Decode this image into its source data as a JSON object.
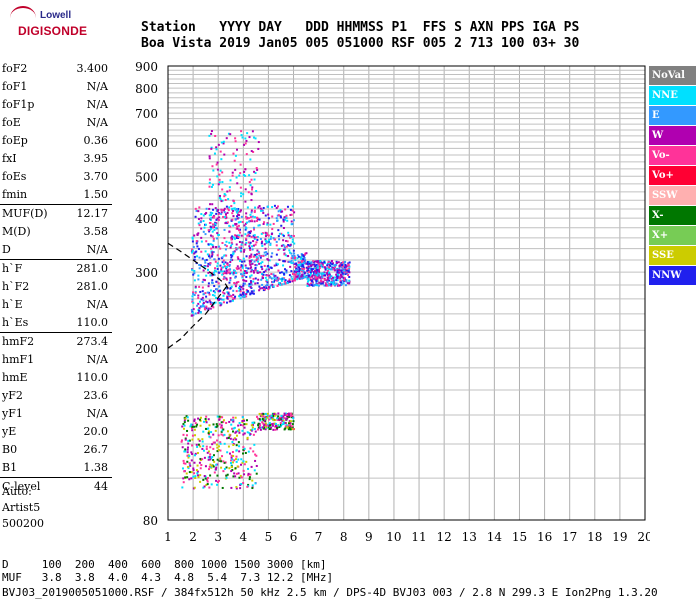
{
  "header": {
    "line1": "Station   YYYY DAY   DDD HHMMSS P1  FFS S AXN PPS IGA PS",
    "line2": "Boa Vista 2019 Jan05 005 051000 RSF 005 2 713 100 03+ 30"
  },
  "logo": {
    "top": "Lowell",
    "bottom": "DIGISONDE"
  },
  "params": [
    {
      "k": "foF2",
      "v": "3.400"
    },
    {
      "k": "foF1",
      "v": "N/A"
    },
    {
      "k": "foF1p",
      "v": "N/A"
    },
    {
      "k": "foE",
      "v": "N/A"
    },
    {
      "k": "foEp",
      "v": "0.36"
    },
    {
      "k": "fxI",
      "v": "3.95"
    },
    {
      "k": "foEs",
      "v": "3.70"
    },
    {
      "k": "fmin",
      "v": "1.50"
    },
    {
      "k": "MUF(D)",
      "v": "12.17"
    },
    {
      "k": "M(D)",
      "v": "3.58"
    },
    {
      "k": "D",
      "v": "N/A"
    },
    {
      "k": "h`F",
      "v": "281.0"
    },
    {
      "k": "h`F2",
      "v": "281.0"
    },
    {
      "k": "h`E",
      "v": "N/A"
    },
    {
      "k": "h`Es",
      "v": "110.0"
    },
    {
      "k": "hmF2",
      "v": "273.4"
    },
    {
      "k": "hmF1",
      "v": "N/A"
    },
    {
      "k": "hmE",
      "v": "110.0"
    },
    {
      "k": "yF2",
      "v": "23.6"
    },
    {
      "k": "yF1",
      "v": "N/A"
    },
    {
      "k": "yE",
      "v": "20.0"
    },
    {
      "k": "B0",
      "v": "26.7"
    },
    {
      "k": "B1",
      "v": "1.38"
    },
    {
      "k": "C-level",
      "v": "44"
    }
  ],
  "auto": [
    "Auto:",
    "Artist5",
    "500200"
  ],
  "distance_table": {
    "line1": "D     100  200  400  600  800 1000 1500 3000 [km]",
    "line2": "MUF   3.8  3.8  4.0  4.3  4.8  5.4  7.3 12.2 [MHz]"
  },
  "footer": "BVJ03_2019005051000.RSF / 384fx512h 50 kHz 2.5 km / DPS-4D BVJ03 003 / 2.8 N 299.3 E Ion2Png 1.3.20",
  "legend": [
    {
      "label": "NoVal",
      "color": "#808080"
    },
    {
      "label": "NNE",
      "color": "#00e0ff"
    },
    {
      "label": "E",
      "color": "#3399ff"
    },
    {
      "label": "W",
      "color": "#b000b0"
    },
    {
      "label": "Vo-",
      "color": "#ff3399"
    },
    {
      "label": "Vo+",
      "color": "#ff0033"
    },
    {
      "label": "SSW",
      "color": "#ffb0b0"
    },
    {
      "label": "X-",
      "color": "#007700"
    },
    {
      "label": "X+",
      "color": "#77cc55"
    },
    {
      "label": "SSE",
      "color": "#cccc00"
    },
    {
      "label": "NNW",
      "color": "#2020ee"
    }
  ],
  "chart_data": {
    "type": "scatter",
    "title": "",
    "xlabel": "",
    "ylabel": "",
    "xlim": [
      1,
      20
    ],
    "ylim": [
      80,
      900
    ],
    "x_ticks": [
      1,
      2,
      3,
      4,
      5,
      6,
      7,
      8,
      9,
      10,
      11,
      12,
      13,
      14,
      15,
      16,
      17,
      18,
      19,
      20
    ],
    "y_ticks": [
      80,
      200,
      300,
      400,
      500,
      600,
      700,
      800,
      900
    ],
    "y_scale": "log",
    "grid": true,
    "legend_position": "right",
    "clusters": [
      {
        "name": "F-trace",
        "x_range": [
          1.9,
          8.2
        ],
        "y_range": [
          220,
          440
        ],
        "colors": [
          "#b000b0",
          "#00e0ff",
          "#3399ff",
          "#ff3399",
          "#2020ee"
        ]
      },
      {
        "name": "F-spread-high",
        "x_range": [
          2.6,
          5.8
        ],
        "y_range": [
          300,
          640
        ],
        "colors": [
          "#b000b0",
          "#ff3399",
          "#00e0ff"
        ]
      },
      {
        "name": "Es-trace",
        "x_range": [
          1.5,
          6.0
        ],
        "y_range": [
          95,
          140
        ],
        "colors": [
          "#ff3399",
          "#b000b0",
          "#00e0ff",
          "#cccc00",
          "#007700"
        ]
      }
    ],
    "model_curve": [
      [
        1.0,
        350
      ],
      [
        1.5,
        335
      ],
      [
        2.0,
        320
      ],
      [
        2.5,
        305
      ],
      [
        3.0,
        290
      ],
      [
        3.3,
        281
      ],
      [
        3.4,
        275
      ]
    ],
    "model_curve_lower": [
      [
        1.0,
        200
      ],
      [
        1.5,
        210
      ],
      [
        2.0,
        225
      ],
      [
        2.5,
        240
      ],
      [
        3.0,
        262
      ],
      [
        3.4,
        281
      ]
    ]
  }
}
